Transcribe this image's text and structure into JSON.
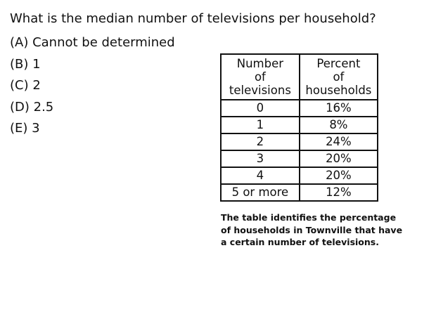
{
  "question": "What is the median number of televisions per household?",
  "choices": [
    "(A) Cannot be determined",
    "(B) 1",
    "(C) 2",
    "(D) 2.5",
    "(E) 3"
  ],
  "table": {
    "headers": [
      [
        "Number",
        "of",
        "televisions"
      ],
      [
        "Percent",
        "of",
        "households"
      ]
    ],
    "rows": [
      [
        "0",
        "16%"
      ],
      [
        "1",
        "8%"
      ],
      [
        "2",
        "24%"
      ],
      [
        "3",
        "20%"
      ],
      [
        "4",
        "20%"
      ],
      [
        "5 or more",
        "12%"
      ]
    ]
  },
  "caption": [
    "The table identifies the percentage",
    "of households in Townville that have",
    "a certain number of televisions."
  ]
}
